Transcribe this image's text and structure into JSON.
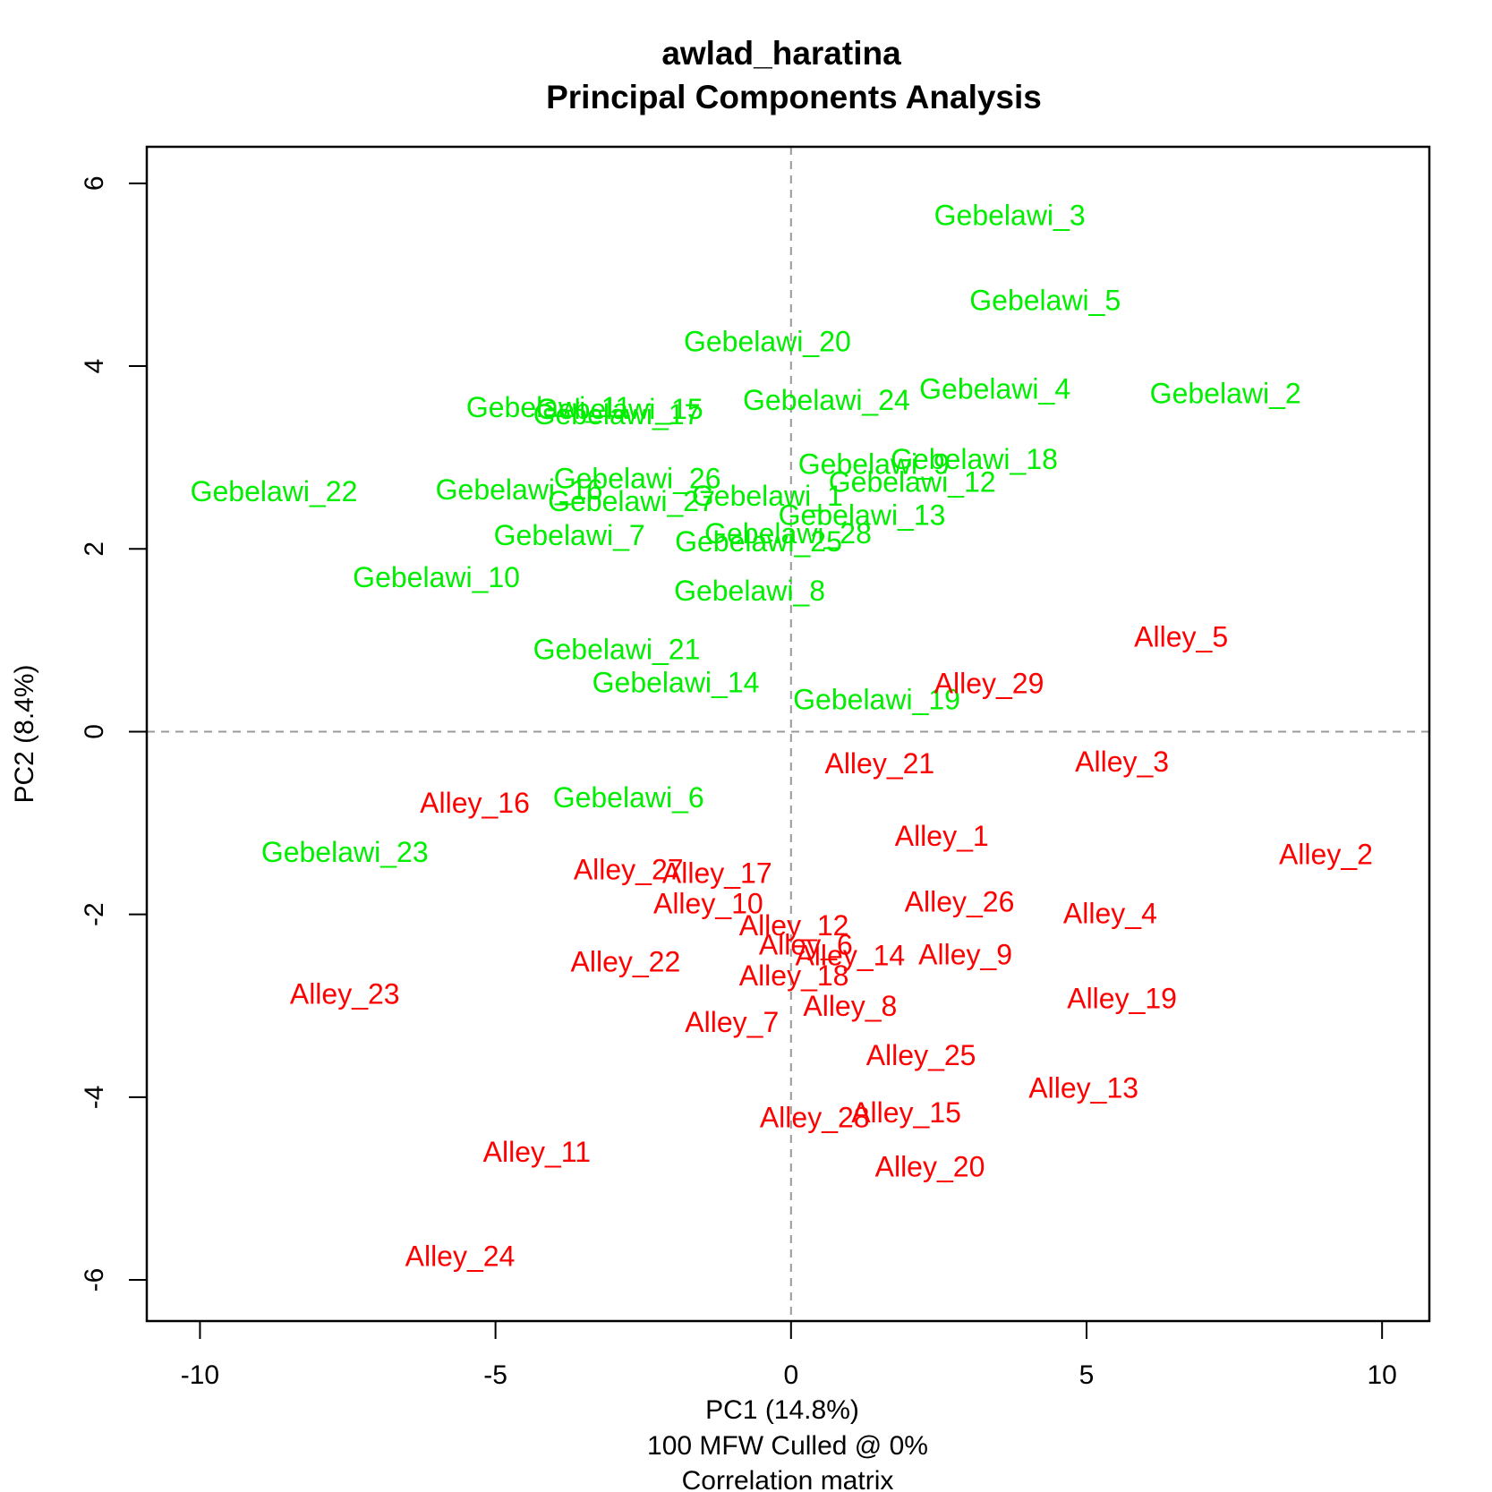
{
  "chart_data": {
    "type": "scatter",
    "title": [
      "awlad_haratina",
      "Principal Components Analysis"
    ],
    "xlabel": "PC1 (14.8%)",
    "xsublabels": [
      "100 MFW  Culled @ 0%",
      "Correlation matrix"
    ],
    "ylabel": "PC2 (8.4%)",
    "xlim": [
      -10.9,
      10.8
    ],
    "ylim": [
      -6.45,
      6.4
    ],
    "xticks": [
      -10,
      -5,
      0,
      5,
      10
    ],
    "xtick_labels": [
      "-10",
      "-5",
      "0",
      "5",
      "10"
    ],
    "yticks": [
      -6,
      -4,
      -2,
      0,
      2,
      4,
      6
    ],
    "ytick_labels": [
      "-6",
      "-4",
      "-2",
      "0",
      "2",
      "4",
      "6"
    ],
    "reference_lines": {
      "x": 0,
      "y": 0,
      "style": "dashed"
    },
    "grid": false,
    "series": [
      {
        "name": "Gebelawi",
        "color": "#00ee00",
        "points": [
          {
            "label": "Gebelawi_3",
            "x": 3.7,
            "y": 5.65
          },
          {
            "label": "Gebelawi_5",
            "x": 4.3,
            "y": 4.72
          },
          {
            "label": "Gebelawi_20",
            "x": -0.4,
            "y": 4.27
          },
          {
            "label": "Gebelawi_4",
            "x": 3.45,
            "y": 3.75
          },
          {
            "label": "Gebelawi_2",
            "x": 7.35,
            "y": 3.7
          },
          {
            "label": "Gebelawi_24",
            "x": 0.6,
            "y": 3.63
          },
          {
            "label": "Gebelawi_11",
            "x": -4.1,
            "y": 3.55
          },
          {
            "label": "Gebelawi_15",
            "x": -2.9,
            "y": 3.53
          },
          {
            "label": "Gebelawi_17",
            "x": -2.95,
            "y": 3.47
          },
          {
            "label": "Gebelawi_18",
            "x": 3.1,
            "y": 2.98
          },
          {
            "label": "Gebelawi_9",
            "x": 1.4,
            "y": 2.93
          },
          {
            "label": "Gebelawi_12",
            "x": 2.05,
            "y": 2.73
          },
          {
            "label": "Gebelawi_26",
            "x": -2.6,
            "y": 2.77
          },
          {
            "label": "Gebelawi_22",
            "x": -8.75,
            "y": 2.63
          },
          {
            "label": "Gebelawi_16",
            "x": -4.6,
            "y": 2.65
          },
          {
            "label": "Gebelawi_27",
            "x": -2.7,
            "y": 2.52
          },
          {
            "label": "Gebelawi_1",
            "x": -0.4,
            "y": 2.58
          },
          {
            "label": "Gebelawi_13",
            "x": 1.2,
            "y": 2.37
          },
          {
            "label": "Gebelawi_7",
            "x": -3.75,
            "y": 2.15
          },
          {
            "label": "Gebelawi_28",
            "x": -0.05,
            "y": 2.17
          },
          {
            "label": "Gebelawi_25",
            "x": -0.55,
            "y": 2.08
          },
          {
            "label": "Gebelawi_10",
            "x": -6.0,
            "y": 1.69
          },
          {
            "label": "Gebelawi_8",
            "x": -0.7,
            "y": 1.54
          },
          {
            "label": "Gebelawi_21",
            "x": -2.95,
            "y": 0.9
          },
          {
            "label": "Gebelawi_14",
            "x": -1.95,
            "y": 0.54
          },
          {
            "label": "Gebelawi_19",
            "x": 1.45,
            "y": 0.35
          },
          {
            "label": "Gebelawi_6",
            "x": -2.75,
            "y": -0.72
          },
          {
            "label": "Gebelawi_23",
            "x": -7.55,
            "y": -1.32
          }
        ]
      },
      {
        "name": "Alley",
        "color": "#ff0000",
        "points": [
          {
            "label": "Alley_5",
            "x": 6.6,
            "y": 1.04
          },
          {
            "label": "Alley_29",
            "x": 3.35,
            "y": 0.53
          },
          {
            "label": "Alley_21",
            "x": 1.5,
            "y": -0.35
          },
          {
            "label": "Alley_3",
            "x": 5.6,
            "y": -0.33
          },
          {
            "label": "Alley_16",
            "x": -5.35,
            "y": -0.78
          },
          {
            "label": "Alley_1",
            "x": 2.55,
            "y": -1.14
          },
          {
            "label": "Alley_2",
            "x": 9.05,
            "y": -1.34
          },
          {
            "label": "Alley_27",
            "x": -2.75,
            "y": -1.51
          },
          {
            "label": "Alley_17",
            "x": -1.25,
            "y": -1.55
          },
          {
            "label": "Alley_10",
            "x": -1.4,
            "y": -1.88
          },
          {
            "label": "Alley_26",
            "x": 2.85,
            "y": -1.86
          },
          {
            "label": "Alley_4",
            "x": 5.4,
            "y": -1.99
          },
          {
            "label": "Alley_12",
            "x": 0.05,
            "y": -2.12
          },
          {
            "label": "Alley_6",
            "x": 0.25,
            "y": -2.33
          },
          {
            "label": "Alley_14",
            "x": 1.0,
            "y": -2.45
          },
          {
            "label": "Alley_9",
            "x": 2.95,
            "y": -2.44
          },
          {
            "label": "Alley_22",
            "x": -2.8,
            "y": -2.52
          },
          {
            "label": "Alley_18",
            "x": 0.05,
            "y": -2.67
          },
          {
            "label": "Alley_23",
            "x": -7.55,
            "y": -2.87
          },
          {
            "label": "Alley_19",
            "x": 5.6,
            "y": -2.92
          },
          {
            "label": "Alley_8",
            "x": 1.0,
            "y": -3.0
          },
          {
            "label": "Alley_7",
            "x": -1.0,
            "y": -3.18
          },
          {
            "label": "Alley_25",
            "x": 2.2,
            "y": -3.54
          },
          {
            "label": "Alley_13",
            "x": 4.95,
            "y": -3.9
          },
          {
            "label": "Alley_15",
            "x": 1.95,
            "y": -4.17
          },
          {
            "label": "Alley_28",
            "x": 0.4,
            "y": -4.22
          },
          {
            "label": "Alley_11",
            "x": -4.3,
            "y": -4.6
          },
          {
            "label": "Alley_20",
            "x": 2.35,
            "y": -4.76
          },
          {
            "label": "Alley_24",
            "x": -5.6,
            "y": -5.74
          }
        ]
      }
    ]
  }
}
